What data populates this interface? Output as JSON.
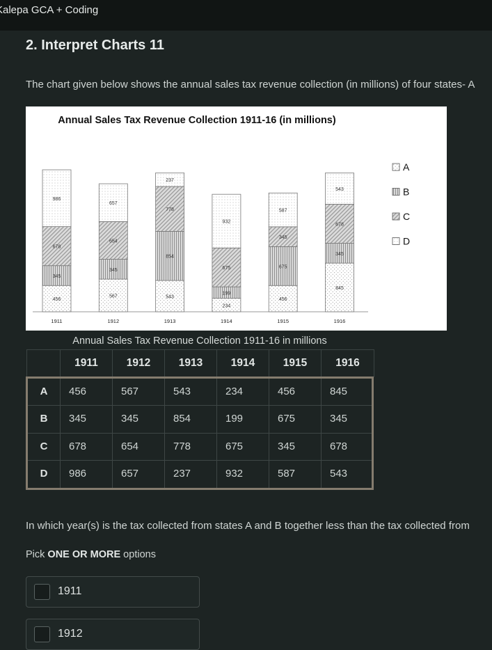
{
  "window": {
    "title": "Kalepa GCA + Coding"
  },
  "question": {
    "title": "2. Interpret Charts 11",
    "intro": "The chart given below shows the annual sales tax revenue collection (in millions) of four states- A",
    "prompt": "In which year(s) is the tax collected from states A and B together less than the tax collected from",
    "pick_prefix": "Pick ",
    "pick_bold": "ONE OR MORE",
    "pick_suffix": " options"
  },
  "chart_data": {
    "type": "bar",
    "stacked": true,
    "title": "Annual Sales Tax Revenue Collection 1911-16 (in millions)",
    "categories": [
      "1911",
      "1912",
      "1913",
      "1914",
      "1915",
      "1916"
    ],
    "series": [
      {
        "name": "A",
        "values": [
          456,
          567,
          543,
          234,
          456,
          845
        ]
      },
      {
        "name": "B",
        "values": [
          345,
          345,
          854,
          199,
          675,
          345
        ]
      },
      {
        "name": "C",
        "values": [
          678,
          654,
          778,
          675,
          345,
          678
        ]
      },
      {
        "name": "D",
        "values": [
          986,
          657,
          237,
          932,
          587,
          543
        ]
      }
    ],
    "legend": "right",
    "yaxis_visible": false,
    "data_labels": true
  },
  "table": {
    "caption": "Annual Sales Tax Revenue Collection 1911-16 in millions",
    "headers": [
      "",
      "1911",
      "1912",
      "1913",
      "1914",
      "1915",
      "1916"
    ],
    "rows": [
      {
        "label": "A",
        "values": [
          "456",
          "567",
          "543",
          "234",
          "456",
          "845"
        ]
      },
      {
        "label": "B",
        "values": [
          "345",
          "345",
          "854",
          "199",
          "675",
          "345"
        ]
      },
      {
        "label": "C",
        "values": [
          "678",
          "654",
          "778",
          "675",
          "345",
          "678"
        ]
      },
      {
        "label": "D",
        "values": [
          "986",
          "657",
          "237",
          "932",
          "587",
          "543"
        ]
      }
    ]
  },
  "options": [
    {
      "label": "1911",
      "checked": false
    },
    {
      "label": "1912",
      "checked": false
    }
  ]
}
